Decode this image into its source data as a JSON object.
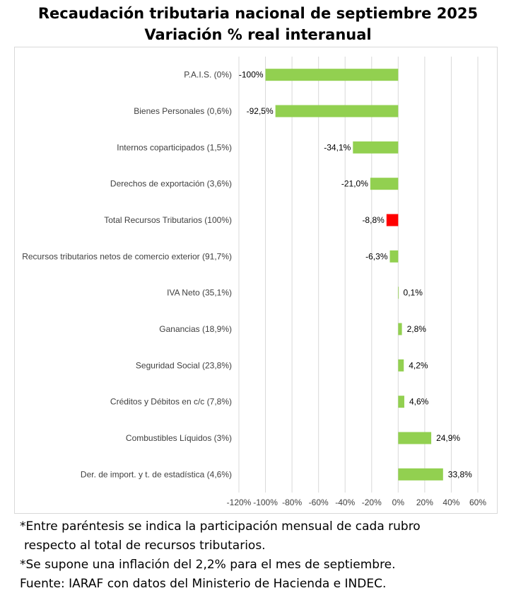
{
  "chart_data": {
    "type": "bar",
    "orientation": "horizontal",
    "title": "Recaudación tributaria nacional de septiembre 2025",
    "subtitle": "Variación % real interanual",
    "xlim": [
      -120,
      60
    ],
    "x_ticks": [
      "-120%",
      "-100%",
      "-80%",
      "-60%",
      "-40%",
      "-20%",
      "0%",
      "20%",
      "40%",
      "60%"
    ],
    "x_tick_values": [
      -120,
      -100,
      -80,
      -60,
      -40,
      -20,
      0,
      20,
      40,
      60
    ],
    "grid": "vertical",
    "legend": "none",
    "categories": [
      "P.A.I.S. (0%)",
      "Bienes Personales (0,6%)",
      "Internos coparticipados (1,5%)",
      "Derechos de exportación (3,6%)",
      "Total Recursos Tributarios (100%)",
      "Recursos tributarios netos de comercio exterior (91,7%)",
      "IVA Neto (35,1%)",
      "Ganancias (18,9%)",
      "Seguridad Social (23,8%)",
      "Créditos y Débitos en c/c (7,8%)",
      "Combustibles Líquidos (3%)",
      "Der. de import. y t. de estadística (4,6%)"
    ],
    "values": [
      -100,
      -92.5,
      -34.1,
      -21.0,
      -8.8,
      -6.3,
      0.1,
      2.8,
      4.2,
      4.6,
      24.9,
      33.8
    ],
    "data_labels": [
      "-100%",
      "-92,5%",
      "-34,1%",
      "-21,0%",
      "-8,8%",
      "-6,3%",
      "0,1%",
      "2,8%",
      "4,2%",
      "4,6%",
      "24,9%",
      "33,8%"
    ],
    "bar_colors": [
      "#92d050",
      "#92d050",
      "#92d050",
      "#92d050",
      "#ff0000",
      "#92d050",
      "#92d050",
      "#92d050",
      "#92d050",
      "#92d050",
      "#92d050",
      "#92d050"
    ]
  },
  "notes": {
    "line1": "*Entre paréntesis se indica la participación mensual de cada rubro",
    "line2": "respecto al total de recursos tributarios.",
    "line3": "*Se supone una inflación del 2,2% para el mes de septiembre.",
    "source": "Fuente: IARAF con datos del Ministerio de Hacienda e INDEC."
  }
}
